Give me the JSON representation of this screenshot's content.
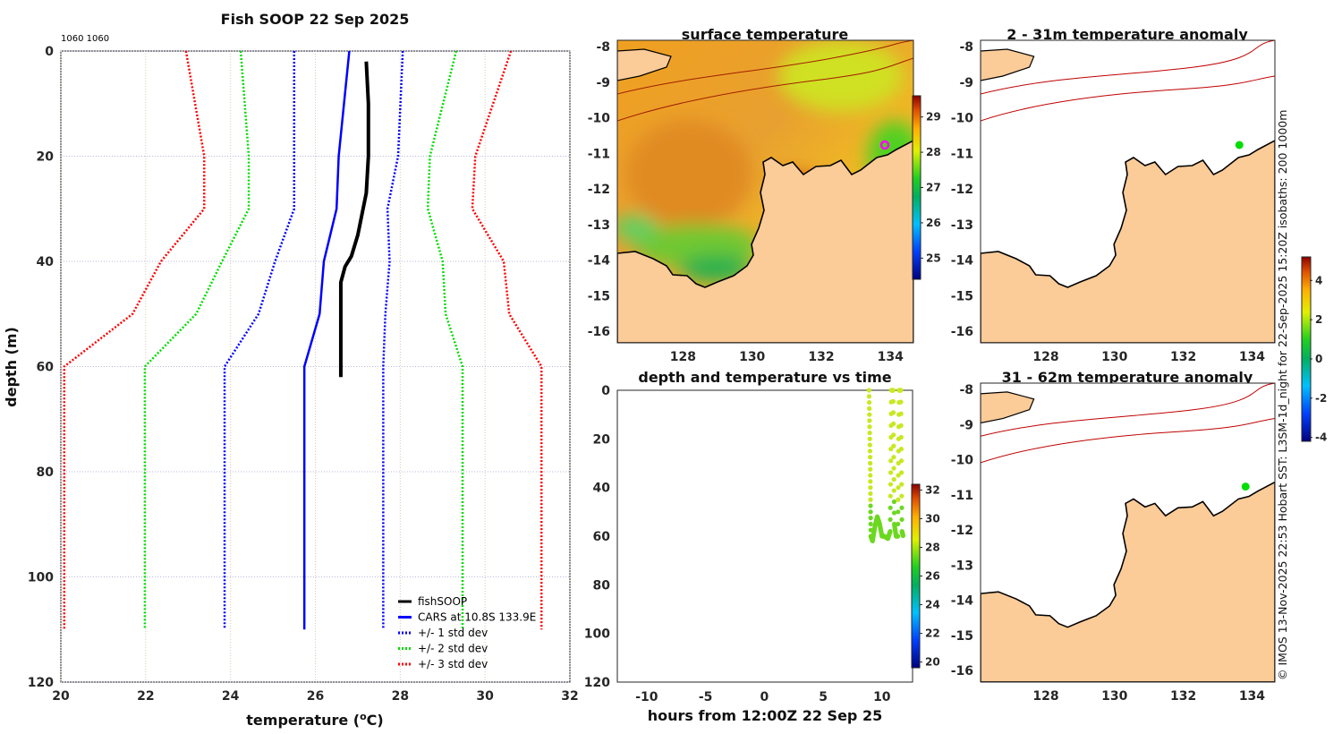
{
  "chart_data": [
    {
      "type": "line",
      "title": "Fish SOOP 22 Sep 2025",
      "corner_label": "1060 1060",
      "xlabel": "temperature (",
      "xlabel_unit_sup": "o",
      "xlabel_unit": "C)",
      "ylabel": "depth (m)",
      "xlim": [
        20,
        32
      ],
      "ylim": [
        0,
        120
      ],
      "xticks": [
        20,
        22,
        24,
        26,
        28,
        30,
        32
      ],
      "yticks": [
        0,
        20,
        40,
        60,
        80,
        100,
        120
      ],
      "grid": true,
      "legend": "bottom-right",
      "series": [
        {
          "name": "fishSOOP",
          "color": "#000000",
          "style": "solid",
          "points": [
            [
              27.2,
              2
            ],
            [
              27.25,
              10
            ],
            [
              27.25,
              20
            ],
            [
              27.2,
              27
            ],
            [
              27.1,
              31
            ],
            [
              27.0,
              35
            ],
            [
              26.85,
              39
            ],
            [
              26.7,
              41
            ],
            [
              26.6,
              44
            ],
            [
              26.6,
              52
            ],
            [
              26.6,
              62
            ]
          ]
        },
        {
          "name": "CARS at 10.8S 133.9E",
          "color": "#0000ff",
          "style": "solid",
          "points": [
            [
              26.8,
              0
            ],
            [
              26.55,
              20
            ],
            [
              26.5,
              30
            ],
            [
              26.2,
              40
            ],
            [
              26.1,
              50
            ],
            [
              25.74,
              60
            ],
            [
              25.74,
              110
            ]
          ]
        },
        {
          "name": "+/- 1 std dev",
          "color": "#0000ff",
          "style": "dotted",
          "points": [
            [
              28.06,
              0
            ],
            [
              27.95,
              20
            ],
            [
              27.7,
              30
            ],
            [
              27.75,
              40
            ],
            [
              27.65,
              50
            ],
            [
              27.6,
              60
            ],
            [
              27.6,
              110
            ]
          ],
          "points2": [
            [
              25.5,
              0
            ],
            [
              25.5,
              20
            ],
            [
              25.5,
              30
            ],
            [
              25.05,
              40
            ],
            [
              24.66,
              50
            ],
            [
              23.86,
              60
            ],
            [
              23.86,
              110
            ]
          ]
        },
        {
          "name": "+/- 2 std dev",
          "color": "#00dd00",
          "style": "dotted",
          "points": [
            [
              29.32,
              0
            ],
            [
              28.7,
              20
            ],
            [
              28.65,
              30
            ],
            [
              29.0,
              40
            ],
            [
              29.07,
              50
            ],
            [
              29.47,
              60
            ],
            [
              29.47,
              110
            ]
          ],
          "points2": [
            [
              24.24,
              0
            ],
            [
              24.43,
              20
            ],
            [
              24.43,
              30
            ],
            [
              23.8,
              40
            ],
            [
              23.19,
              50
            ],
            [
              21.98,
              60
            ],
            [
              21.98,
              110
            ]
          ]
        },
        {
          "name": "+/- 3 std dev",
          "color": "#ff0000",
          "style": "dotted",
          "points": [
            [
              30.61,
              0
            ],
            [
              29.77,
              20
            ],
            [
              29.7,
              30
            ],
            [
              30.44,
              40
            ],
            [
              30.57,
              50
            ],
            [
              31.33,
              60
            ],
            [
              31.33,
              110
            ]
          ],
          "points2": [
            [
              22.95,
              0
            ],
            [
              23.38,
              20
            ],
            [
              23.38,
              30
            ],
            [
              22.36,
              40
            ],
            [
              21.69,
              50
            ],
            [
              20.08,
              60
            ],
            [
              20.08,
              110
            ]
          ]
        }
      ]
    },
    {
      "type": "heatmap",
      "title": "surface temperature",
      "xticks": [
        128,
        130,
        132,
        134
      ],
      "yticks": [
        -8,
        -9,
        -10,
        -11,
        -12,
        -13,
        -14,
        -15,
        -16
      ],
      "colorbar": {
        "ticks": [
          25,
          26,
          27,
          28,
          29
        ],
        "range": [
          24.4,
          29.6
        ]
      },
      "marker": {
        "lon": 133.9,
        "lat": -10.8,
        "color": "#ff00ff"
      }
    },
    {
      "type": "heatmap",
      "title": "2 - 31m temperature anomaly",
      "xticks": [
        128,
        130,
        132,
        134
      ],
      "yticks": [
        -8,
        -9,
        -10,
        -11,
        -12,
        -13,
        -14,
        -15,
        -16
      ],
      "marker": {
        "lon": 133.9,
        "lat": -10.8,
        "color": "#00dd00"
      }
    },
    {
      "type": "heatmap",
      "title": "31 - 62m temperature anomaly",
      "xticks": [
        128,
        130,
        132,
        134
      ],
      "yticks": [
        -8,
        -9,
        -10,
        -11,
        -12,
        -13,
        -14,
        -15,
        -16
      ],
      "marker": {
        "lon": 133.9,
        "lat": -10.8,
        "color": "#00dd00"
      },
      "colorbar": {
        "ticks": [
          -4,
          -2,
          0,
          2,
          4
        ],
        "range": [
          -4.2,
          5.2
        ]
      }
    },
    {
      "type": "scatter",
      "title": "depth and temperature vs time",
      "xlabel": "hours from 12:00Z 22 Sep 25",
      "xlim": [
        -12.5,
        12.6
      ],
      "ylim": [
        0,
        120
      ],
      "xticks": [
        -10,
        -5,
        0,
        5,
        10
      ],
      "yticks": [
        0,
        20,
        40,
        60,
        80,
        100,
        120
      ],
      "colorbar": {
        "ticks": [
          20,
          22,
          24,
          26,
          28,
          30,
          32
        ],
        "range": [
          19.6,
          32.4
        ]
      },
      "points": [
        [
          8.9,
          0
        ],
        [
          9.0,
          30
        ],
        [
          9.05,
          60
        ],
        [
          9.2,
          62
        ],
        [
          9.4,
          56
        ],
        [
          9.6,
          52
        ],
        [
          9.8,
          55
        ],
        [
          10.0,
          60
        ],
        [
          10.2,
          60
        ],
        [
          10.5,
          61
        ],
        [
          10.7,
          58
        ],
        [
          10.8,
          0
        ],
        [
          10.95,
          0
        ],
        [
          11.05,
          55
        ],
        [
          11.2,
          60
        ],
        [
          11.35,
          60
        ],
        [
          11.45,
          0
        ],
        [
          11.6,
          0
        ],
        [
          11.7,
          58
        ],
        [
          11.8,
          60
        ]
      ]
    }
  ],
  "credit": "© IMOS 13-Nov-2025 22:53 Hobart SST: L3SM-1d_night for 22-Sep-2025 15:20Z isobaths: 200  1000m"
}
